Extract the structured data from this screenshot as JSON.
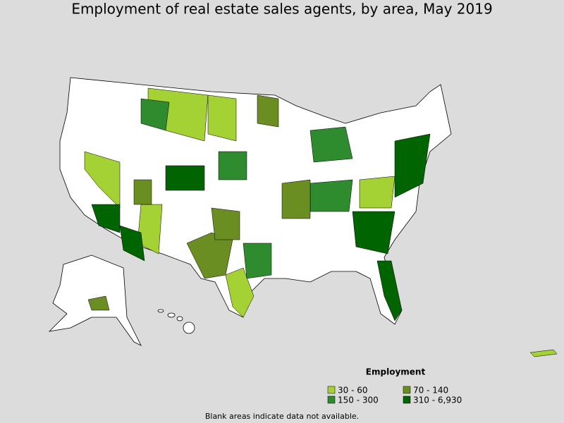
{
  "title": "Employment of real estate sales agents, by area, May 2019",
  "legend": {
    "title": "Employment",
    "items": [
      {
        "label": "30 - 60",
        "color": "#a4d133"
      },
      {
        "label": "70 - 140",
        "color": "#6b8e23"
      },
      {
        "label": "150 - 300",
        "color": "#2e8b2e"
      },
      {
        "label": "310 - 6,930",
        "color": "#006400"
      }
    ]
  },
  "footnote": "Blank areas indicate data not available."
}
